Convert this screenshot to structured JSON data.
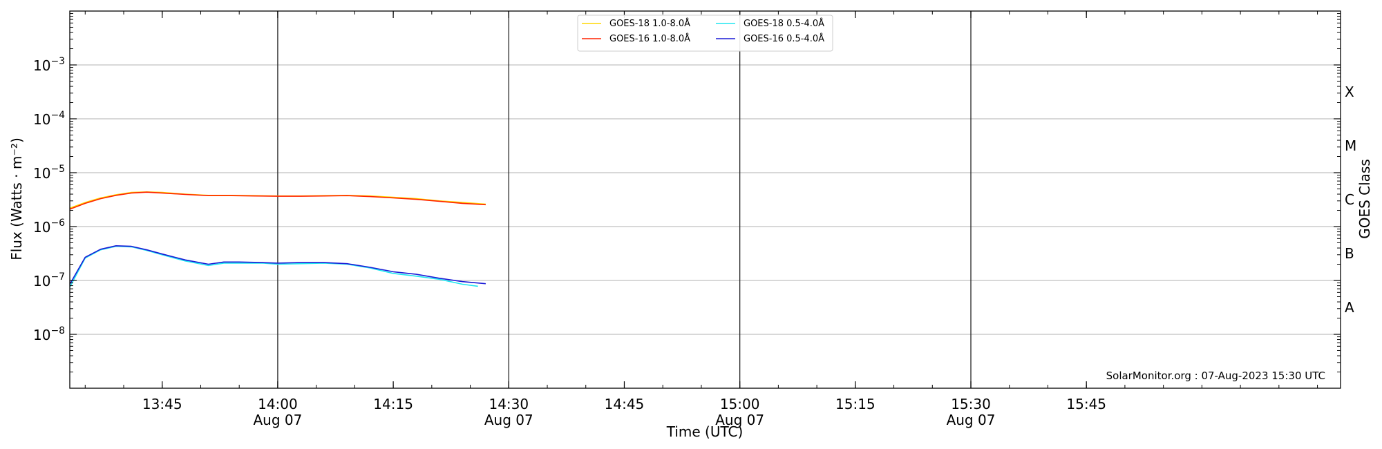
{
  "chart_data": {
    "type": "line",
    "xlabel": "Time (UTC)",
    "ylabel": "Flux (Watts · m⁻²)",
    "y2label": "GOES Class",
    "yscale": "log",
    "ylim": [
      1e-09,
      0.01
    ],
    "xlim": [
      "13:33",
      "16:18"
    ],
    "x_ticks": [
      {
        "time": "13:45",
        "label": "13:45",
        "sublabel": "",
        "major": false
      },
      {
        "time": "14:00",
        "label": "14:00",
        "sublabel": "Aug 07",
        "major": true
      },
      {
        "time": "14:15",
        "label": "14:15",
        "sublabel": "",
        "major": false
      },
      {
        "time": "14:30",
        "label": "14:30",
        "sublabel": "Aug 07",
        "major": true
      },
      {
        "time": "14:45",
        "label": "14:45",
        "sublabel": "",
        "major": false
      },
      {
        "time": "15:00",
        "label": "15:00",
        "sublabel": "Aug 07",
        "major": true
      },
      {
        "time": "15:15",
        "label": "15:15",
        "sublabel": "",
        "major": false
      },
      {
        "time": "15:30",
        "label": "15:30",
        "sublabel": "Aug 07",
        "major": true
      },
      {
        "time": "15:45",
        "label": "15:45",
        "sublabel": "",
        "major": false
      }
    ],
    "y_ticks": [
      {
        "value": 1e-08,
        "base": "10",
        "exp": "−8"
      },
      {
        "value": 1e-07,
        "base": "10",
        "exp": "−7"
      },
      {
        "value": 1e-06,
        "base": "10",
        "exp": "−6"
      },
      {
        "value": 1e-05,
        "base": "10",
        "exp": "−5"
      },
      {
        "value": 0.0001,
        "base": "10",
        "exp": "−4"
      },
      {
        "value": 0.001,
        "base": "10",
        "exp": "−3"
      }
    ],
    "goes_classes": [
      {
        "label": "A",
        "value": 3.16e-08
      },
      {
        "label": "B",
        "value": 3.16e-07
      },
      {
        "label": "C",
        "value": 3.16e-06
      },
      {
        "label": "M",
        "value": 3.16e-05
      },
      {
        "label": "X",
        "value": 0.000316
      }
    ],
    "grid": true,
    "legend": {
      "placement": "top-center",
      "entries": [
        "GOES-18 1.0-8.0Å",
        "GOES-16 1.0-8.0Å",
        "GOES-18 0.5-4.0Å",
        "GOES-16 0.5-4.0Å"
      ]
    },
    "annotation": "SolarMonitor.org : 07-Aug-2023 15:30 UTC",
    "series": [
      {
        "name": "GOES-18 1.0-8.0Å",
        "color": "#ffd700",
        "x": [
          "13:33",
          "13:35",
          "13:37",
          "13:39",
          "13:41",
          "13:43",
          "13:45",
          "13:48",
          "13:51",
          "13:54",
          "13:57",
          "14:00",
          "14:03",
          "14:06",
          "14:09",
          "14:12",
          "14:15",
          "14:18",
          "14:21",
          "14:24",
          "14:27"
        ],
        "y": [
          2.2e-06,
          2.8e-06,
          3.4e-06,
          3.9e-06,
          4.3e-06,
          4.4e-06,
          4.3e-06,
          4e-06,
          3.8e-06,
          3.8e-06,
          3.75e-06,
          3.7e-06,
          3.7e-06,
          3.75e-06,
          3.8e-06,
          3.7e-06,
          3.5e-06,
          3.3e-06,
          3e-06,
          2.8e-06,
          2.6e-06
        ]
      },
      {
        "name": "GOES-16 1.0-8.0Å",
        "color": "#ff2200",
        "x": [
          "13:33",
          "13:35",
          "13:37",
          "13:39",
          "13:41",
          "13:43",
          "13:45",
          "13:48",
          "13:51",
          "13:54",
          "13:57",
          "14:00",
          "14:03",
          "14:06",
          "14:09",
          "14:12",
          "14:15",
          "14:18",
          "14:21",
          "14:24",
          "14:27"
        ],
        "y": [
          2.1e-06,
          2.7e-06,
          3.3e-06,
          3.8e-06,
          4.2e-06,
          4.35e-06,
          4.2e-06,
          3.95e-06,
          3.75e-06,
          3.75e-06,
          3.7e-06,
          3.65e-06,
          3.65e-06,
          3.7e-06,
          3.75e-06,
          3.6e-06,
          3.4e-06,
          3.2e-06,
          2.95e-06,
          2.7e-06,
          2.55e-06
        ]
      },
      {
        "name": "GOES-18 0.5-4.0Å",
        "color": "#1ee6f0",
        "x": [
          "13:33",
          "13:35",
          "13:37",
          "13:39",
          "13:41",
          "13:43",
          "13:45",
          "13:48",
          "13:51",
          "13:53",
          "13:55",
          "13:58",
          "14:00",
          "14:03",
          "14:06",
          "14:09",
          "14:12",
          "14:15",
          "14:18",
          "14:21",
          "14:24",
          "14:26"
        ],
        "y": [
          7.5e-08,
          2.6e-07,
          3.7e-07,
          4.3e-07,
          4.2e-07,
          3.6e-07,
          3e-07,
          2.3e-07,
          1.9e-07,
          2.1e-07,
          2.1e-07,
          2.1e-07,
          2e-07,
          2.05e-07,
          2.1e-07,
          2e-07,
          1.7e-07,
          1.35e-07,
          1.2e-07,
          1.05e-07,
          8.5e-08,
          7.8e-08
        ]
      },
      {
        "name": "GOES-16 0.5-4.0Å",
        "color": "#1a1ad6",
        "x": [
          "13:33",
          "13:35",
          "13:37",
          "13:39",
          "13:41",
          "13:43",
          "13:45",
          "13:48",
          "13:51",
          "13:53",
          "13:55",
          "13:58",
          "14:00",
          "14:03",
          "14:06",
          "14:09",
          "14:12",
          "14:15",
          "14:18",
          "14:21",
          "14:24",
          "14:27"
        ],
        "y": [
          8.5e-08,
          2.7e-07,
          3.8e-07,
          4.4e-07,
          4.3e-07,
          3.7e-07,
          3.1e-07,
          2.4e-07,
          2e-07,
          2.2e-07,
          2.2e-07,
          2.15e-07,
          2.1e-07,
          2.15e-07,
          2.15e-07,
          2.05e-07,
          1.75e-07,
          1.45e-07,
          1.3e-07,
          1.1e-07,
          9.5e-08,
          8.7e-08
        ]
      }
    ]
  }
}
